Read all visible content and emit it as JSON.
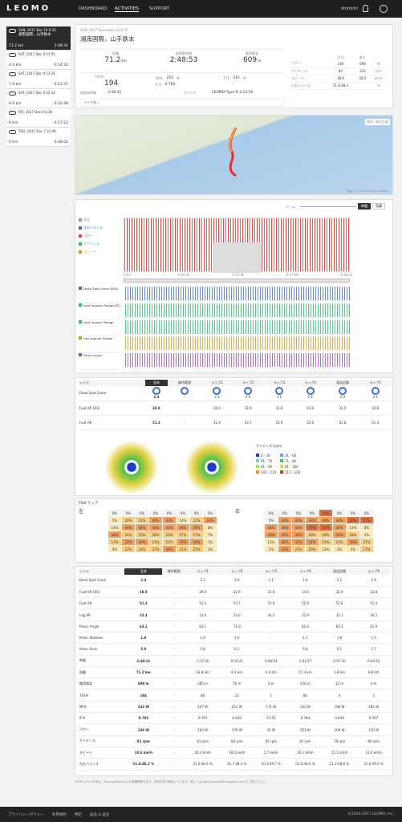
{
  "nav": {
    "logo": "LEOMO",
    "links": [
      "DASHBOARD",
      "ACTIVITIES",
      "SUPPORT"
    ],
    "user": "shinichi"
  },
  "sidebar": {
    "activities": [
      {
        "date": "SUN, 2017 Dec 10 6:15",
        "name": "湘南国際，山手鉄本",
        "distance": "71.2 km",
        "duration": "3:48:31"
      },
      {
        "date": "SAT, 2017 Dec 9 13:55",
        "distance": "4.4 km",
        "duration": "0:14:24"
      },
      {
        "date": "SAT, 2017 Dec 9 13:26",
        "distance": "7.9 km",
        "duration": "0:23:37"
      },
      {
        "date": "SAT, 2017 Dec 9 12:33",
        "distance": "9.6 km",
        "duration": "0:32:48"
      },
      {
        "date": "FRI, 2017 Dec 8 0:36",
        "distance": "0 km",
        "duration": "0:17:22"
      },
      {
        "date": "THU, 2017 Dec 7 23:46",
        "distance": "0 km",
        "duration": "0:48:02"
      }
    ]
  },
  "summary": {
    "date": "SUN, 2017 December 10 6:15",
    "title": "湘南国際，山手鉄本",
    "main_stats": [
      {
        "label": "距離",
        "value": "71.2",
        "unit": "km"
      },
      {
        "label": "総移動時間",
        "value": "2:48:53"
      },
      {
        "label": "獲得標高",
        "value": "609",
        "unit": "m"
      }
    ],
    "tss": {
      "label": "TSS®",
      "value": "194"
    },
    "sub_stats": [
      {
        "label": "NP®",
        "value": "243",
        "unit": "W"
      },
      {
        "label": "IF®",
        "value": "0.785"
      },
      {
        "label": "FTP",
        "value": "310",
        "unit": "W"
      }
    ],
    "elapsed": {
      "label": "総経過時間",
      "value": "3:48:31"
    },
    "device": {
      "label": "デバイス",
      "value": "LEOMO-Type-R 3.13.56"
    },
    "memo": "メモを書く",
    "averages": {
      "headers": [
        "平均",
        "最大"
      ],
      "rows": [
        {
          "label": "パワー",
          "avg": "149",
          "max": "699",
          "unit": "W"
        },
        {
          "label": "ケイデンス",
          "avg": "82",
          "max": "123",
          "unit": "rpm"
        },
        {
          "label": "スピード",
          "avg": "18.6",
          "max": "58.5",
          "unit": "km/h"
        },
        {
          "label": "左右バランス",
          "avg": "51.8:48.2",
          "unit": "%"
        }
      ]
    }
  },
  "map": {
    "buttons": [
      "地図",
      "航空写真"
    ],
    "credit": "地図データ ©2017 Google, ZENRIN"
  },
  "timeline": {
    "zoom_label": "ズーム",
    "buttons": [
      "時間",
      "距離"
    ],
    "metrics": [
      "標高",
      "左右バランス",
      "パワー",
      "ケイデンス",
      "スピード"
    ],
    "motion": [
      "Dead Spot Score (DSS)",
      "Foot Angular Range(DS)",
      "Foot Angular Range",
      "Leg Angular Range",
      "Pelvic Angle"
    ],
    "xticks": [
      "0:00",
      "0:46:21",
      "1:31:26",
      "2:17:06",
      "3:48:31"
    ]
  },
  "laps": {
    "head": "レンジ",
    "columns": [
      "全体",
      "操作範囲",
      "ラップ1",
      "ラップ2",
      "ラップ3",
      "ラップ4",
      "過去記録",
      "ラップ5"
    ],
    "rows": [
      {
        "label": "Dead Spot Score",
        "values": [
          "2.4",
          "-",
          "2.3",
          "2.0",
          "2.1",
          "1.4",
          "2.2",
          "2.4"
        ]
      },
      {
        "label": "Foot AR (DS)",
        "values": [
          "28.8",
          "-",
          "29.0",
          "32.9",
          "31.6",
          "33.6",
          "32.0",
          "32.8"
        ]
      },
      {
        "label": "Foot AR",
        "values": [
          "51.3",
          "-",
          "52.0",
          "53.7",
          "53.9",
          "52.9",
          "52.8",
          "51.4"
        ]
      }
    ]
  },
  "cadence_legend": {
    "title": "ケイデンス (rpm)",
    "ranges": [
      "0 - 30",
      "31 - 60",
      "61 - 70",
      "71 - 80",
      "81 - 90",
      "91 - 100",
      "101 - 110",
      "111 - 120"
    ]
  },
  "psd": {
    "title": "PSD マップ",
    "sides": [
      {
        "label": "左",
        "rows": [
          [
            "0%",
            "0%",
            "0%",
            "0%",
            "0%",
            "0%",
            "0%",
            "0%"
          ],
          [
            "5%",
            "20%",
            "21%",
            "40%",
            "30%",
            "14%",
            "21%",
            "43%"
          ],
          [
            "14%",
            "44%",
            "44%",
            "44%",
            "42%",
            "36%",
            "35%",
            "8%"
          ],
          [
            "38%",
            "24%",
            "25%",
            "26%",
            "25%",
            "27%",
            "17%",
            "7%"
          ],
          [
            "17%",
            "32%",
            "30%",
            "21%",
            "21%",
            "30%",
            "34%",
            "1%"
          ],
          [
            "4%",
            "22%",
            "24%",
            "27%",
            "44%",
            "21%",
            "22%",
            "3%"
          ]
        ]
      },
      {
        "label": "右",
        "rows": [
          [
            "0%",
            "0%",
            "0%",
            "0%",
            "50%",
            "0%",
            "0%",
            "0%"
          ],
          [
            "0%",
            "40%",
            "40%",
            "30%",
            "40%",
            "40%",
            "60%",
            "57%"
          ],
          [
            "34%",
            "44%",
            "42%",
            "57%",
            "57%",
            "42%",
            "12%",
            "8%"
          ],
          [
            "36%",
            "35%",
            "34%",
            "26%",
            "29%",
            "42%",
            "28%",
            "1%"
          ],
          [
            "12%",
            "42%",
            "32%",
            "41%",
            "21%",
            "21%",
            "30%",
            "27%"
          ],
          [
            "2%",
            "42%",
            "21%",
            "20%",
            "12%",
            "3%",
            "4%",
            "17%"
          ]
        ]
      }
    ]
  },
  "lap_table": {
    "head": "レンジ",
    "columns": [
      "全体",
      "操作範囲",
      "ラップ1",
      "ラップ2",
      "ラップ3",
      "ラップ4",
      "過去記録",
      "ラップ5"
    ],
    "rows": [
      {
        "label": "Dead Spot Score",
        "values": [
          "2.4",
          "-",
          "2.3",
          "2.0",
          "2.1",
          "1.4",
          "2.2",
          "2.4"
        ]
      },
      {
        "label": "Foot AR (DS)",
        "values": [
          "28.8",
          "-",
          "29.0",
          "32.9",
          "31.6",
          "33.6",
          "32.0",
          "32.8"
        ]
      },
      {
        "label": "Foot AR",
        "values": [
          "51.3",
          "-",
          "52.0",
          "53.7",
          "53.9",
          "52.9",
          "52.8",
          "51.4"
        ]
      },
      {
        "label": "Leg AR",
        "values": [
          "33.4",
          "-",
          "33.6",
          "33.0",
          "34.3",
          "32.9",
          "33.1",
          "34.2"
        ]
      },
      {
        "label": "Pelvic Angle",
        "values": [
          "63.1",
          "-",
          "64.1",
          "71.0",
          "-",
          "62.4",
          "63.3",
          "61.9"
        ]
      },
      {
        "label": "Pelvic Rotation",
        "values": [
          "1.8",
          "-",
          "1.9",
          "2.0",
          "-",
          "1.7",
          "1.8",
          "1.5"
        ]
      },
      {
        "label": "Pelvic Rock",
        "values": [
          "5.9",
          "-",
          "5.8",
          "6.2",
          "-",
          "5.8",
          "6.1",
          "5.7"
        ]
      },
      {
        "label": "時間",
        "values": [
          "3:48:31",
          "-",
          "1:37:30",
          "0:26:21",
          "0:08:54",
          "1:41:27",
          "0:07:10",
          "0:03:42"
        ]
      },
      {
        "label": "距離",
        "values": [
          "71.2 km",
          "-",
          "32.8 km",
          "8.1 km",
          "0.4 km",
          "27.3 km",
          "1.8 km",
          "0.8 km"
        ]
      },
      {
        "label": "獲得標高",
        "values": [
          "609 m",
          "-",
          "285 m",
          "76 m",
          "6 m",
          "226 m",
          "12 m",
          "4 m"
        ]
      },
      {
        "label": "TSS®",
        "values": [
          "194",
          "-",
          "80",
          "22",
          "1",
          "84",
          "4",
          "2"
        ]
      },
      {
        "label": "NP®",
        "values": [
          "243 W",
          "-",
          "247 W",
          "251 W",
          "171 W",
          "243 W",
          "198 W",
          "185 W"
        ]
      },
      {
        "label": "IF®",
        "values": [
          "0.785",
          "-",
          "0.797",
          "0.810",
          "0.552",
          "0.784",
          "0.639",
          "0.597"
        ]
      },
      {
        "label": "パワー",
        "values": [
          "149 W",
          "-",
          "163 W",
          "170 W",
          "31 W",
          "151 W",
          "109 W",
          "120 W"
        ]
      },
      {
        "label": "ケイデンス",
        "values": [
          "82 rpm",
          "-",
          "83 rpm",
          "84 rpm",
          "65 rpm",
          "81 rpm",
          "78 rpm",
          "80 rpm"
        ]
      },
      {
        "label": "スピード",
        "values": [
          "18.6 km/h",
          "-",
          "20.2 km/h",
          "18.4 km/h",
          "2.7 km/h",
          "16.1 km/h",
          "15.1 km/h",
          "13.0 km/h"
        ]
      },
      {
        "label": "左右バランス",
        "values": [
          "51.8:48.2 %",
          "-",
          "51.6:48.4 %",
          "51.7:48.3 %",
          "50.3:49.7 %",
          "52.0:48.0 %",
          "51.2:48.8 %",
          "51.0:49.0 %"
        ]
      }
    ]
  },
  "footnote": "TSS®, IF®, NP®は、TrainingPeaks LLCの登録商標であり、許可を得て使用しています。詳しくは http://www.trainingpeaks.com をご覧ください。",
  "footer": {
    "links": [
      "プライバシーポリシー",
      "利用規約",
      "特定",
      "返品 & 返金"
    ],
    "copyright": "©2016-2017 LEOMO, Inc."
  }
}
